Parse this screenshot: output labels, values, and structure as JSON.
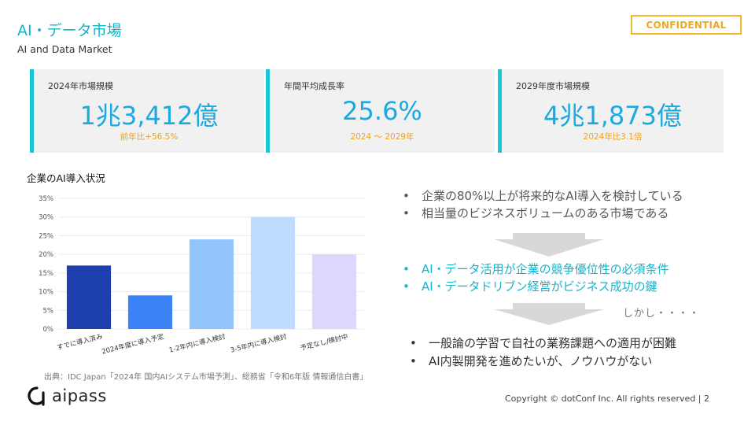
{
  "header": {
    "title": "AI・データ市場",
    "subtitle": "AI and Data Market",
    "badge": "CONFIDENTIAL"
  },
  "kpis": [
    {
      "label": "2024年市場規模",
      "value": "1兆3,412億",
      "note": "前年比+56.5%"
    },
    {
      "label": "年間平均成長率",
      "value": "25.6%",
      "note": "2024 ～ 2029年"
    },
    {
      "label": "2029年度市場規模",
      "value": "4兆1,873億",
      "note": "2024年比3.1倍"
    }
  ],
  "chart_data": {
    "type": "bar",
    "title": "企業のAI導入状況",
    "categories": [
      "すでに導入済み",
      "2024年度に導入予定",
      "1-2年内に導入検討",
      "3-5年内に導入検討",
      "予定なし/検討中"
    ],
    "values": [
      17,
      9,
      24,
      30,
      20
    ],
    "colors": [
      "#1e40af",
      "#3b82f6",
      "#93c5fd",
      "#bfdbfe",
      "#ddd6fe"
    ],
    "ylim": [
      0,
      35
    ],
    "yticks": [
      "0%",
      "5%",
      "10%",
      "15%",
      "20%",
      "25%",
      "30%",
      "35%"
    ],
    "grid": true
  },
  "source": "出典：IDC Japan「2024年 国内AIシステム市場予測」、総務省「令和6年版 情報通信白書」",
  "bullets_top": [
    "企業の80%以上が将来的なAI導入を検討している",
    "相当量のビジネスボリュームのある市場である"
  ],
  "bullets_mid": [
    "AI・データ活用が企業の競争優位性の必須条件",
    "AI・データドリブン経営がビジネス成功の鍵"
  ],
  "bullets_bottom": [
    "一般論の学習で自社の業務課題への適用が困難",
    "AI内製開発を進めたいが、ノウハウがない"
  ],
  "bullet_symbol": "•",
  "shikashi": "しかし・・・・",
  "logo": {
    "text": "aipass",
    "icon": "aipass-logo-icon"
  },
  "footer": "Copyright © dotConf Inc. All rights reserved | 2",
  "colors": {
    "accent": "#19c8d6",
    "value": "#1aa9e0",
    "note": "#f0a11c",
    "badge": "#f2b82a"
  }
}
